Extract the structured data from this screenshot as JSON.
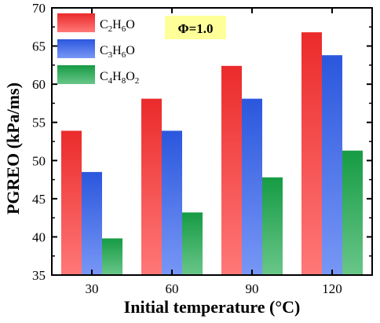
{
  "chart_data": {
    "type": "bar",
    "categories": [
      "30",
      "60",
      "90",
      "120"
    ],
    "series": [
      {
        "name": "C2H6O",
        "label_parts": [
          [
            "C",
            ""
          ],
          [
            "2",
            "sub"
          ],
          [
            "H",
            ""
          ],
          [
            "6",
            "sub"
          ],
          [
            "O",
            ""
          ]
        ],
        "color": "#ff2f2f",
        "values": [
          53.9,
          58.1,
          62.4,
          66.8
        ]
      },
      {
        "name": "C3H6O",
        "label_parts": [
          [
            "C",
            ""
          ],
          [
            "3",
            "sub"
          ],
          [
            "H",
            ""
          ],
          [
            "6",
            "sub"
          ],
          [
            "O",
            ""
          ]
        ],
        "color": "#2f5ff0",
        "values": [
          48.5,
          53.9,
          58.1,
          63.8
        ]
      },
      {
        "name": "C4H8O2",
        "label_parts": [
          [
            "C",
            ""
          ],
          [
            "4",
            "sub"
          ],
          [
            "H",
            ""
          ],
          [
            "8",
            "sub"
          ],
          [
            "O",
            ""
          ],
          [
            "2",
            "sub"
          ]
        ],
        "color": "#18a84a",
        "values": [
          39.8,
          43.2,
          47.8,
          51.3
        ]
      }
    ],
    "xlabel": "Initial temperature (°C)",
    "ylabel": "PGREO (kPa/ms)",
    "ylim": [
      35,
      70
    ],
    "yticks": [
      35,
      40,
      45,
      50,
      55,
      60,
      65,
      70
    ],
    "grid": false,
    "legend_position": "top-left",
    "annotation": {
      "text": "Φ=1.0",
      "background": "#ffff99"
    }
  }
}
